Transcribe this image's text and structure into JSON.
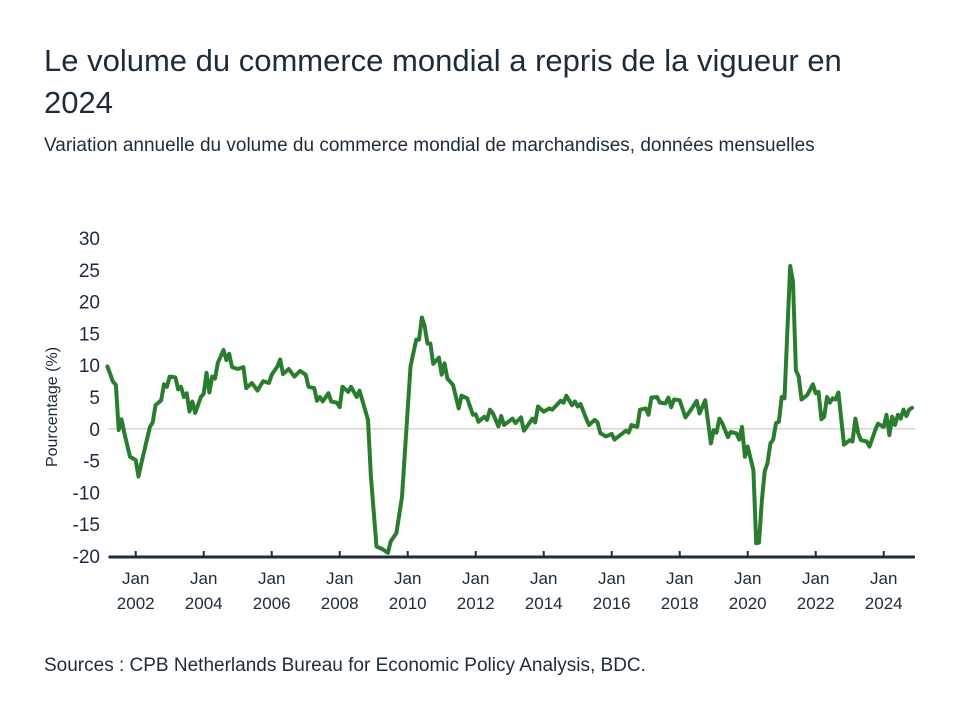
{
  "chart_data": {
    "type": "line",
    "title": "Le volume du commerce mondial a repris de la vigueur en 2024",
    "subtitle": "Variation annuelle du volume du commerce mondial de marchandises, données mensuelles",
    "xlabel": "",
    "ylabel": "Pourcentage (%)",
    "ylim": [
      -20,
      30
    ],
    "yticks": [
      30,
      25,
      20,
      15,
      10,
      5,
      0,
      -5,
      -10,
      -15,
      -20
    ],
    "xlim": [
      "2001-02",
      "2024-12"
    ],
    "xticks": [
      {
        "date": "2002-01",
        "month": "Jan",
        "year": "2002"
      },
      {
        "date": "2004-01",
        "month": "Jan",
        "year": "2004"
      },
      {
        "date": "2006-01",
        "month": "Jan",
        "year": "2006"
      },
      {
        "date": "2008-01",
        "month": "Jan",
        "year": "2008"
      },
      {
        "date": "2010-01",
        "month": "Jan",
        "year": "2010"
      },
      {
        "date": "2012-01",
        "month": "Jan",
        "year": "2012"
      },
      {
        "date": "2014-01",
        "month": "Jan",
        "year": "2014"
      },
      {
        "date": "2016-01",
        "month": "Jan",
        "year": "2016"
      },
      {
        "date": "2018-01",
        "month": "Jan",
        "year": "2018"
      },
      {
        "date": "2020-01",
        "month": "Jan",
        "year": "2020"
      },
      {
        "date": "2022-01",
        "month": "Jan",
        "year": "2022"
      },
      {
        "date": "2024-01",
        "month": "Jan",
        "year": "2024"
      }
    ],
    "grid": false,
    "zero_line": true,
    "colors": {
      "line": "#2a7d2e",
      "axis": "#1d2c3b",
      "zero_line": "#d9d4cc",
      "text": "#1d2c3b"
    },
    "series": [
      {
        "points": [
          [
            "2001-03",
            9.8
          ],
          [
            "2001-05",
            7.4
          ],
          [
            "2001-06",
            6.9
          ],
          [
            "2001-07",
            -0.2
          ],
          [
            "2001-08",
            1.5
          ],
          [
            "2001-09",
            -0.7
          ],
          [
            "2001-11",
            -4.4
          ],
          [
            "2002-01",
            -4.9
          ],
          [
            "2002-02",
            -7.5
          ],
          [
            "2002-03",
            -5.4
          ],
          [
            "2002-06",
            0.3
          ],
          [
            "2002-07",
            1.0
          ],
          [
            "2002-08",
            3.7
          ],
          [
            "2002-10",
            4.5
          ],
          [
            "2002-11",
            7.0
          ],
          [
            "2002-12",
            6.6
          ],
          [
            "2003-01",
            8.2
          ],
          [
            "2003-03",
            8.1
          ],
          [
            "2003-04",
            6.2
          ],
          [
            "2003-05",
            6.6
          ],
          [
            "2003-06",
            5.0
          ],
          [
            "2003-07",
            5.6
          ],
          [
            "2003-08",
            2.7
          ],
          [
            "2003-09",
            4.3
          ],
          [
            "2003-10",
            2.5
          ],
          [
            "2003-12",
            5.0
          ],
          [
            "2004-01",
            5.5
          ],
          [
            "2004-02",
            8.8
          ],
          [
            "2004-03",
            5.7
          ],
          [
            "2004-04",
            8.2
          ],
          [
            "2004-05",
            7.9
          ],
          [
            "2004-06",
            10.4
          ],
          [
            "2004-08",
            12.4
          ],
          [
            "2004-09",
            10.8
          ],
          [
            "2004-10",
            11.8
          ],
          [
            "2004-11",
            9.7
          ],
          [
            "2005-01",
            9.4
          ],
          [
            "2005-03",
            9.7
          ],
          [
            "2005-04",
            6.4
          ],
          [
            "2005-06",
            7.2
          ],
          [
            "2005-08",
            6.0
          ],
          [
            "2005-10",
            7.5
          ],
          [
            "2005-12",
            7.2
          ],
          [
            "2006-01",
            8.5
          ],
          [
            "2006-03",
            9.8
          ],
          [
            "2006-04",
            10.9
          ],
          [
            "2006-05",
            8.6
          ],
          [
            "2006-07",
            9.4
          ],
          [
            "2006-09",
            8.2
          ],
          [
            "2006-11",
            9.1
          ],
          [
            "2007-01",
            8.5
          ],
          [
            "2007-02",
            6.6
          ],
          [
            "2007-04",
            6.4
          ],
          [
            "2007-05",
            4.4
          ],
          [
            "2007-06",
            5.0
          ],
          [
            "2007-07",
            4.3
          ],
          [
            "2007-09",
            5.6
          ],
          [
            "2007-10",
            4.3
          ],
          [
            "2007-12",
            4.1
          ],
          [
            "2008-01",
            3.4
          ],
          [
            "2008-02",
            6.6
          ],
          [
            "2008-04",
            5.8
          ],
          [
            "2008-05",
            6.6
          ],
          [
            "2008-07",
            5.0
          ],
          [
            "2008-08",
            6.0
          ],
          [
            "2008-11",
            1.4
          ],
          [
            "2008-12",
            -7.5
          ],
          [
            "2009-02",
            -18.5
          ],
          [
            "2009-04",
            -18.9
          ],
          [
            "2009-06",
            -19.5
          ],
          [
            "2009-07",
            -17.7
          ],
          [
            "2009-09",
            -16.4
          ],
          [
            "2009-11",
            -10.7
          ],
          [
            "2010-02",
            9.8
          ],
          [
            "2010-04",
            14.0
          ],
          [
            "2010-05",
            14.0
          ],
          [
            "2010-06",
            17.5
          ],
          [
            "2010-07",
            16.1
          ],
          [
            "2010-08",
            13.4
          ],
          [
            "2010-09",
            13.4
          ],
          [
            "2010-10",
            10.2
          ],
          [
            "2010-12",
            11.2
          ],
          [
            "2011-01",
            8.5
          ],
          [
            "2011-02",
            10.3
          ],
          [
            "2011-03",
            7.9
          ],
          [
            "2011-05",
            6.9
          ],
          [
            "2011-07",
            3.2
          ],
          [
            "2011-08",
            5.2
          ],
          [
            "2011-10",
            4.8
          ],
          [
            "2011-12",
            2.2
          ],
          [
            "2012-01",
            2.3
          ],
          [
            "2012-02",
            1.1
          ],
          [
            "2012-04",
            1.9
          ],
          [
            "2012-05",
            1.4
          ],
          [
            "2012-06",
            3.0
          ],
          [
            "2012-07",
            2.5
          ],
          [
            "2012-09",
            0.4
          ],
          [
            "2012-10",
            2.0
          ],
          [
            "2012-11",
            0.6
          ],
          [
            "2013-02",
            1.6
          ],
          [
            "2013-03",
            0.9
          ],
          [
            "2013-05",
            1.8
          ],
          [
            "2013-06",
            -0.3
          ],
          [
            "2013-07",
            0.3
          ],
          [
            "2013-09",
            1.6
          ],
          [
            "2013-10",
            1.0
          ],
          [
            "2013-11",
            3.5
          ],
          [
            "2014-01",
            2.7
          ],
          [
            "2014-03",
            3.2
          ],
          [
            "2014-04",
            3.0
          ],
          [
            "2014-07",
            4.4
          ],
          [
            "2014-08",
            4.1
          ],
          [
            "2014-09",
            5.2
          ],
          [
            "2014-11",
            3.7
          ],
          [
            "2014-12",
            4.3
          ],
          [
            "2015-01",
            3.5
          ],
          [
            "2015-02",
            3.9
          ],
          [
            "2015-04",
            1.6
          ],
          [
            "2015-05",
            0.6
          ],
          [
            "2015-07",
            1.4
          ],
          [
            "2015-08",
            1.0
          ],
          [
            "2015-09",
            -0.7
          ],
          [
            "2015-11",
            -1.2
          ],
          [
            "2016-01",
            -0.8
          ],
          [
            "2016-02",
            -1.7
          ],
          [
            "2016-04",
            -1.0
          ],
          [
            "2016-06",
            -0.3
          ],
          [
            "2016-07",
            -0.6
          ],
          [
            "2016-08",
            0.6
          ],
          [
            "2016-10",
            0.3
          ],
          [
            "2016-11",
            3.0
          ],
          [
            "2017-01",
            3.2
          ],
          [
            "2017-02",
            2.2
          ],
          [
            "2017-03",
            4.9
          ],
          [
            "2017-05",
            5.0
          ],
          [
            "2017-06",
            4.1
          ],
          [
            "2017-08",
            4.0
          ],
          [
            "2017-09",
            4.9
          ],
          [
            "2017-10",
            3.4
          ],
          [
            "2017-11",
            4.6
          ],
          [
            "2018-01",
            4.5
          ],
          [
            "2018-03",
            1.8
          ],
          [
            "2018-05",
            3.0
          ],
          [
            "2018-07",
            4.4
          ],
          [
            "2018-08",
            2.4
          ],
          [
            "2018-10",
            4.5
          ],
          [
            "2018-12",
            -2.3
          ],
          [
            "2019-01",
            -0.2
          ],
          [
            "2019-02",
            -0.6
          ],
          [
            "2019-03",
            1.6
          ],
          [
            "2019-04",
            0.9
          ],
          [
            "2019-06",
            -1.3
          ],
          [
            "2019-07",
            -0.5
          ],
          [
            "2019-09",
            -0.7
          ],
          [
            "2019-10",
            -1.7
          ],
          [
            "2019-11",
            0.3
          ],
          [
            "2019-12",
            -4.4
          ],
          [
            "2020-01",
            -2.8
          ],
          [
            "2020-03",
            -6.5
          ],
          [
            "2020-04",
            -18.0
          ],
          [
            "2020-05",
            -17.9
          ],
          [
            "2020-06",
            -11.2
          ],
          [
            "2020-07",
            -6.7
          ],
          [
            "2020-08",
            -5.4
          ],
          [
            "2020-09",
            -2.3
          ],
          [
            "2020-10",
            -1.7
          ],
          [
            "2020-11",
            0.9
          ],
          [
            "2020-12",
            1.1
          ],
          [
            "2021-01",
            5.0
          ],
          [
            "2021-02",
            4.8
          ],
          [
            "2021-03",
            15.5
          ],
          [
            "2021-04",
            25.6
          ],
          [
            "2021-05",
            23.1
          ],
          [
            "2021-06",
            9.2
          ],
          [
            "2021-07",
            8.2
          ],
          [
            "2021-08",
            4.6
          ],
          [
            "2021-10",
            5.3
          ],
          [
            "2021-12",
            7.0
          ],
          [
            "2022-01",
            5.6
          ],
          [
            "2022-02",
            5.8
          ],
          [
            "2022-03",
            1.5
          ],
          [
            "2022-04",
            1.9
          ],
          [
            "2022-05",
            5.0
          ],
          [
            "2022-06",
            4.1
          ],
          [
            "2022-07",
            4.8
          ],
          [
            "2022-08",
            4.6
          ],
          [
            "2022-09",
            5.7
          ],
          [
            "2022-11",
            -2.5
          ],
          [
            "2023-01",
            -1.8
          ],
          [
            "2023-02",
            -2.0
          ],
          [
            "2023-03",
            1.6
          ],
          [
            "2023-04",
            -0.7
          ],
          [
            "2023-05",
            -1.8
          ],
          [
            "2023-07",
            -2.0
          ],
          [
            "2023-08",
            -2.8
          ],
          [
            "2023-09",
            -1.5
          ],
          [
            "2023-10",
            -0.2
          ],
          [
            "2023-11",
            0.8
          ],
          [
            "2024-01",
            0.3
          ],
          [
            "2024-02",
            2.2
          ],
          [
            "2024-03",
            -1.0
          ],
          [
            "2024-04",
            1.9
          ],
          [
            "2024-05",
            0.6
          ],
          [
            "2024-06",
            2.2
          ],
          [
            "2024-07",
            1.6
          ],
          [
            "2024-08",
            3.0
          ],
          [
            "2024-09",
            2.0
          ],
          [
            "2024-10",
            3.0
          ],
          [
            "2024-11",
            3.3
          ]
        ]
      }
    ]
  },
  "header": {
    "title": "Le volume du commerce mondial a repris de la vigueur en 2024",
    "subtitle": "Variation annuelle du volume du commerce mondial de marchandises, données mensuelles"
  },
  "footer": {
    "source": "Sources : CPB Netherlands Bureau for Economic Policy Analysis, BDC."
  }
}
